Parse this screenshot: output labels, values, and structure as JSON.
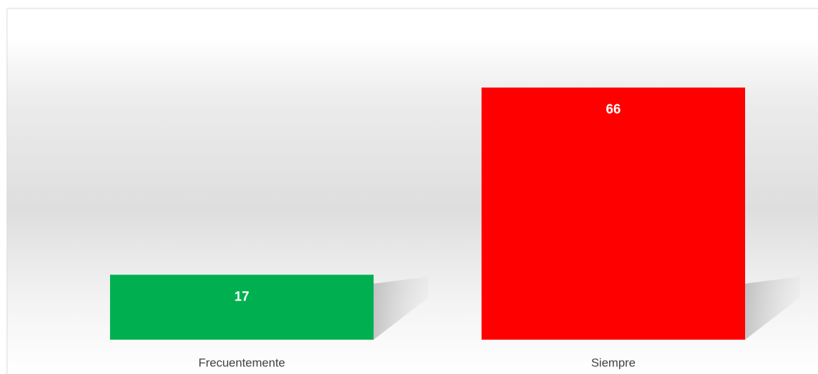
{
  "chart_data": {
    "type": "bar",
    "categories": [
      "Frecuentemente",
      "Siempre"
    ],
    "values": [
      17,
      66
    ],
    "colors": [
      "#00b050",
      "#ff0000"
    ]
  }
}
